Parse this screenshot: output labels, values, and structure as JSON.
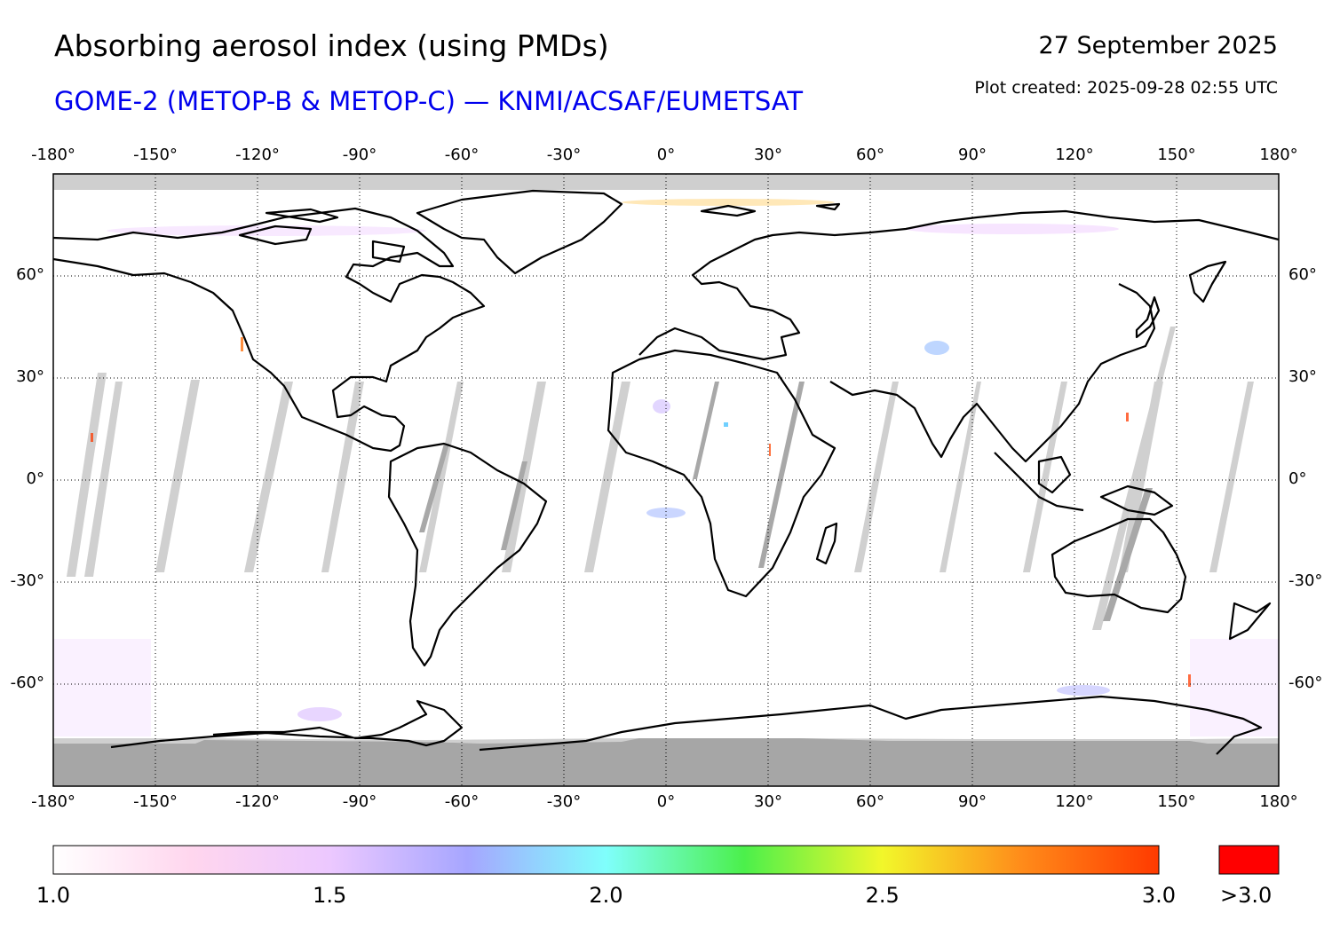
{
  "header": {
    "title": "Absorbing aerosol index (using PMDs)",
    "subtitle": "GOME-2 (METOP-B & METOP-C) — KNMI/ACSAF/EUMETSAT",
    "date": "27 September 2025",
    "created": "Plot created: 2025-09-28 02:55 UTC"
  },
  "map": {
    "lon_ticks": [
      {
        "value": -180,
        "label": "-180°"
      },
      {
        "value": -150,
        "label": "-150°"
      },
      {
        "value": -120,
        "label": "-120°"
      },
      {
        "value": -90,
        "label": "-90°"
      },
      {
        "value": -60,
        "label": "-60°"
      },
      {
        "value": -30,
        "label": "-30°"
      },
      {
        "value": 0,
        "label": "0°"
      },
      {
        "value": 30,
        "label": "30°"
      },
      {
        "value": 60,
        "label": "60°"
      },
      {
        "value": 90,
        "label": "90°"
      },
      {
        "value": 120,
        "label": "120°"
      },
      {
        "value": 150,
        "label": "150°"
      },
      {
        "value": 180,
        "label": "180°"
      }
    ],
    "lat_ticks": [
      {
        "value": 60,
        "label": "60°"
      },
      {
        "value": 30,
        "label": "30°"
      },
      {
        "value": 0,
        "label": "0°"
      },
      {
        "value": -30,
        "label": "-30°"
      },
      {
        "value": -60,
        "label": "-60°"
      }
    ],
    "lon_range": [
      -180,
      180
    ],
    "lat_range": [
      -90,
      90
    ]
  },
  "colorbar": {
    "tick_labels": [
      {
        "value": 1.0,
        "label": "1.0"
      },
      {
        "value": 1.5,
        "label": "1.5"
      },
      {
        "value": 2.0,
        "label": "2.0"
      },
      {
        "value": 2.5,
        "label": "2.5"
      },
      {
        "value": 3.0,
        "label": "3.0"
      }
    ],
    "overflow_label": ">3.0",
    "overflow_color": "#ff0000",
    "range": [
      1.0,
      3.0
    ],
    "colors": [
      "#ffffff",
      "#ffd6ee",
      "#ecc8ff",
      "#a6a6ff",
      "#7ffffc",
      "#4bf04b",
      "#f2f72a",
      "#ff8c1a",
      "#ff3a00"
    ]
  },
  "colors": {
    "no_data": "#cfcfcf",
    "dark_no_data": "#a6a6a6",
    "coast": "#000000",
    "subtitle": "#0000ee"
  }
}
